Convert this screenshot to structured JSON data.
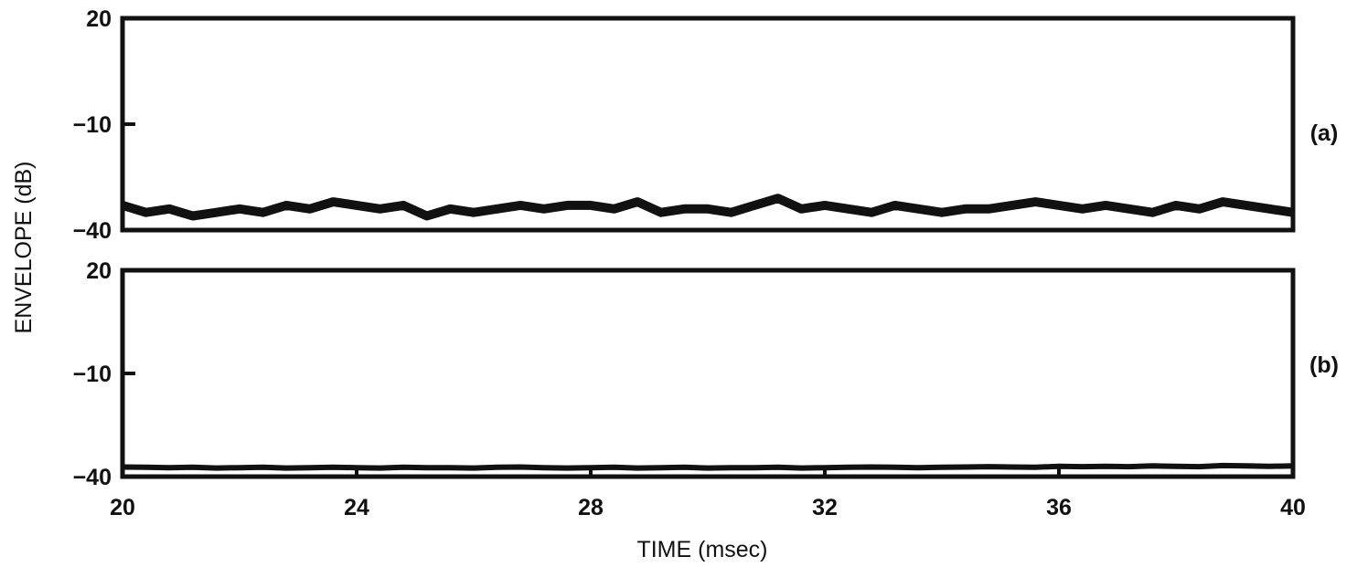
{
  "chart_data": [
    {
      "type": "line",
      "panel_label": "(a)",
      "ylabel": "ENVELOPE (dB)",
      "xlabel": "",
      "xlim": [
        20,
        40
      ],
      "ylim": [
        -40,
        20
      ],
      "yticks": [
        20,
        -10,
        -40
      ],
      "ytick_labels": [
        "20",
        "−10",
        "−40"
      ],
      "xticks": [],
      "xtick_labels": [],
      "grid": false,
      "series": [
        {
          "x": [
            20.0,
            20.4,
            20.8,
            21.2,
            21.6,
            22.0,
            22.4,
            22.8,
            23.2,
            23.6,
            24.0,
            24.4,
            24.8,
            25.2,
            25.6,
            26.0,
            26.4,
            26.8,
            27.2,
            27.6,
            28.0,
            28.4,
            28.8,
            29.2,
            29.6,
            30.0,
            30.4,
            30.8,
            31.2,
            31.6,
            32.0,
            32.4,
            32.8,
            33.2,
            33.6,
            34.0,
            34.4,
            34.8,
            35.2,
            35.6,
            36.0,
            36.4,
            36.8,
            37.2,
            37.6,
            38.0,
            38.4,
            38.8,
            39.2,
            39.6,
            40.0
          ],
          "y": [
            -33,
            -35,
            -34,
            -36,
            -35,
            -34,
            -35,
            -33,
            -34,
            -32,
            -33,
            -34,
            -33,
            -36,
            -34,
            -35,
            -34,
            -33,
            -34,
            -33,
            -33,
            -34,
            -32,
            -35,
            -34,
            -34,
            -35,
            -33,
            -31,
            -34,
            -33,
            -34,
            -35,
            -33,
            -34,
            -35,
            -34,
            -34,
            -33,
            -32,
            -33,
            -34,
            -33,
            -34,
            -35,
            -33,
            -34,
            -32,
            -33,
            -34,
            -35
          ]
        }
      ]
    },
    {
      "type": "line",
      "panel_label": "(b)",
      "ylabel": "ENVELOPE (dB)",
      "xlabel": "TIME (msec)",
      "xlim": [
        20,
        40
      ],
      "ylim": [
        -40,
        20
      ],
      "yticks": [
        20,
        -10,
        -40
      ],
      "ytick_labels": [
        "20",
        "−10",
        "−40"
      ],
      "xticks": [
        20,
        24,
        28,
        32,
        36,
        40
      ],
      "xtick_labels": [
        "20",
        "24",
        "28",
        "32",
        "36",
        "40"
      ],
      "grid": false,
      "series": [
        {
          "x": [
            20.0,
            20.4,
            20.8,
            21.2,
            21.6,
            22.0,
            22.4,
            22.8,
            23.2,
            23.6,
            24.0,
            24.4,
            24.8,
            25.2,
            25.6,
            26.0,
            26.4,
            26.8,
            27.2,
            27.6,
            28.0,
            28.4,
            28.8,
            29.2,
            29.6,
            30.0,
            30.4,
            30.8,
            31.2,
            31.6,
            32.0,
            32.4,
            32.8,
            33.2,
            33.6,
            34.0,
            34.4,
            34.8,
            35.2,
            35.6,
            36.0,
            36.4,
            36.8,
            37.2,
            37.6,
            38.0,
            38.4,
            38.8,
            39.2,
            39.6,
            40.0
          ],
          "y": [
            -37.2,
            -37.3,
            -37.4,
            -37.3,
            -37.5,
            -37.4,
            -37.3,
            -37.5,
            -37.4,
            -37.3,
            -37.4,
            -37.5,
            -37.3,
            -37.4,
            -37.4,
            -37.5,
            -37.3,
            -37.2,
            -37.4,
            -37.5,
            -37.4,
            -37.3,
            -37.5,
            -37.4,
            -37.3,
            -37.5,
            -37.4,
            -37.4,
            -37.3,
            -37.5,
            -37.4,
            -37.3,
            -37.2,
            -37.3,
            -37.4,
            -37.3,
            -37.2,
            -37.1,
            -37.2,
            -37.3,
            -37.0,
            -37.1,
            -37.0,
            -37.1,
            -36.9,
            -37.0,
            -37.1,
            -36.8,
            -36.9,
            -37.0,
            -36.9
          ]
        }
      ]
    }
  ]
}
